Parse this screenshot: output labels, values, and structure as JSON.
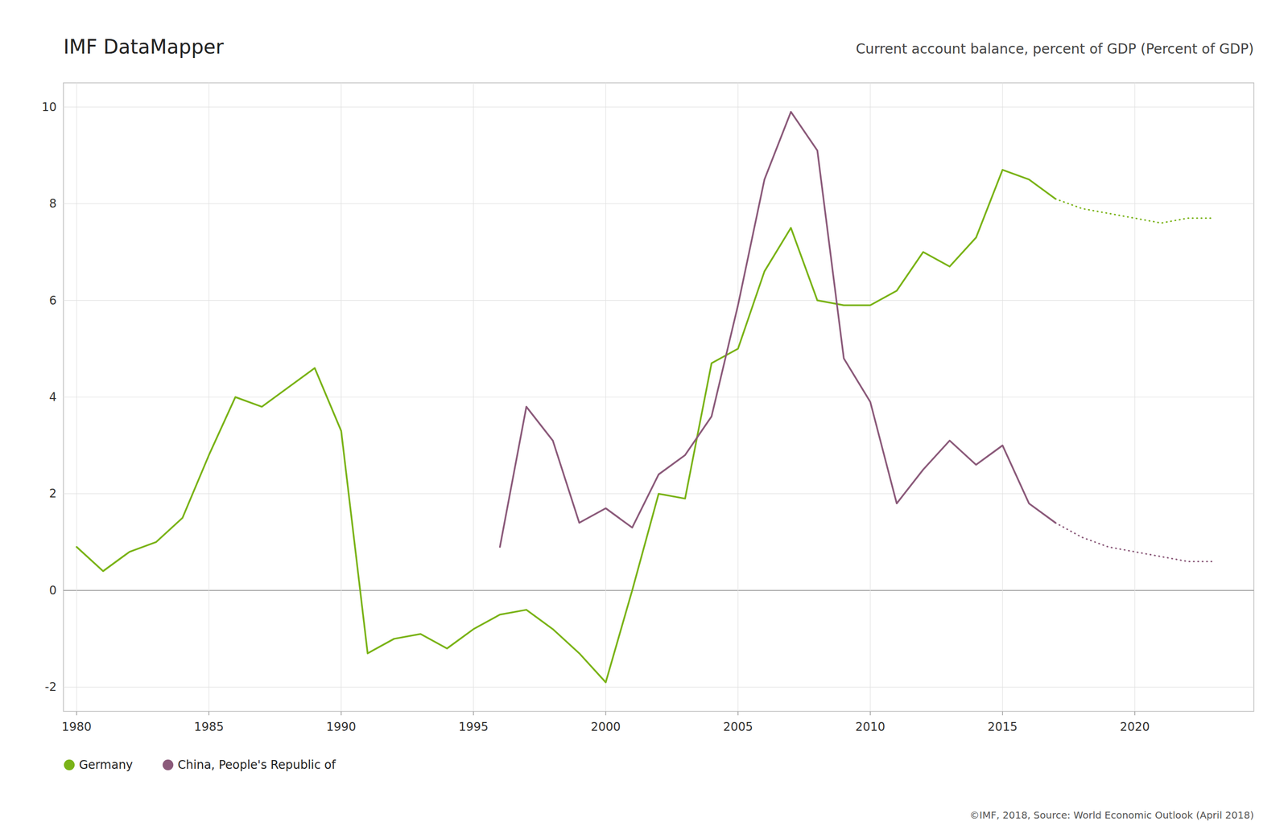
{
  "chart_data": {
    "type": "line",
    "title": "IMF DataMapper",
    "subtitle": "Current account balance, percent of GDP (Percent of GDP)",
    "annotations": [
      "©IMF, 2018, Source: World Economic Outlook (April 2018)"
    ],
    "x": [
      1980,
      1981,
      1982,
      1983,
      1984,
      1985,
      1986,
      1987,
      1988,
      1989,
      1990,
      1991,
      1992,
      1993,
      1994,
      1995,
      1996,
      1997,
      1998,
      1999,
      2000,
      2001,
      2002,
      2003,
      2004,
      2005,
      2006,
      2007,
      2008,
      2009,
      2010,
      2011,
      2012,
      2013,
      2014,
      2015,
      2016,
      2017,
      2018,
      2019,
      2020,
      2021,
      2022,
      2023
    ],
    "series": [
      {
        "name": "Germany",
        "color": "#7ab317",
        "line_style": "solid",
        "values": [
          0.9,
          0.4,
          0.8,
          1.0,
          1.5,
          2.8,
          4.0,
          3.8,
          4.2,
          4.6,
          3.3,
          -1.3,
          -1.0,
          -0.9,
          -1.2,
          -0.8,
          -0.5,
          -0.4,
          -0.8,
          -1.3,
          -1.9,
          0.0,
          2.0,
          1.9,
          4.7,
          5.0,
          6.6,
          7.5,
          6.0,
          5.9,
          5.9,
          6.2,
          7.0,
          6.7,
          7.3,
          8.7,
          8.5,
          8.1,
          null,
          null,
          null,
          null,
          null,
          null
        ]
      },
      {
        "color": "#7ab317",
        "line_style": "dotted",
        "values": [
          null,
          null,
          null,
          null,
          null,
          null,
          null,
          null,
          null,
          null,
          null,
          null,
          null,
          null,
          null,
          null,
          null,
          null,
          null,
          null,
          null,
          null,
          null,
          null,
          null,
          null,
          null,
          null,
          null,
          null,
          null,
          null,
          null,
          null,
          null,
          null,
          null,
          8.1,
          7.9,
          7.8,
          7.7,
          7.6,
          7.7,
          7.7
        ]
      },
      {
        "name": "China, People's Republic of",
        "color": "#8b5a7a",
        "line_style": "solid",
        "values": [
          null,
          null,
          null,
          null,
          null,
          null,
          null,
          null,
          null,
          null,
          null,
          null,
          null,
          null,
          null,
          null,
          0.9,
          3.8,
          3.1,
          1.4,
          1.7,
          1.3,
          2.4,
          2.8,
          3.6,
          5.9,
          8.5,
          9.9,
          9.1,
          4.8,
          3.9,
          1.8,
          2.5,
          3.1,
          2.6,
          3.0,
          1.8,
          1.4,
          null,
          null,
          null,
          null,
          null,
          null
        ]
      },
      {
        "color": "#8b5a7a",
        "line_style": "dotted",
        "values": [
          null,
          null,
          null,
          null,
          null,
          null,
          null,
          null,
          null,
          null,
          null,
          null,
          null,
          null,
          null,
          null,
          null,
          null,
          null,
          null,
          null,
          null,
          null,
          null,
          null,
          null,
          null,
          null,
          null,
          null,
          null,
          null,
          null,
          null,
          null,
          null,
          null,
          1.4,
          1.1,
          0.9,
          0.8,
          0.7,
          0.6,
          0.6
        ]
      }
    ],
    "xlim": [
      1979.5,
      2024.5
    ],
    "xticks": [
      1980,
      1985,
      1990,
      1995,
      2000,
      2005,
      2010,
      2015,
      2020
    ],
    "ylim": [
      -2.5,
      10.5
    ],
    "yticks": [
      -2,
      0,
      2,
      4,
      6,
      8,
      10
    ],
    "grid": true,
    "legend": "bottom"
  }
}
